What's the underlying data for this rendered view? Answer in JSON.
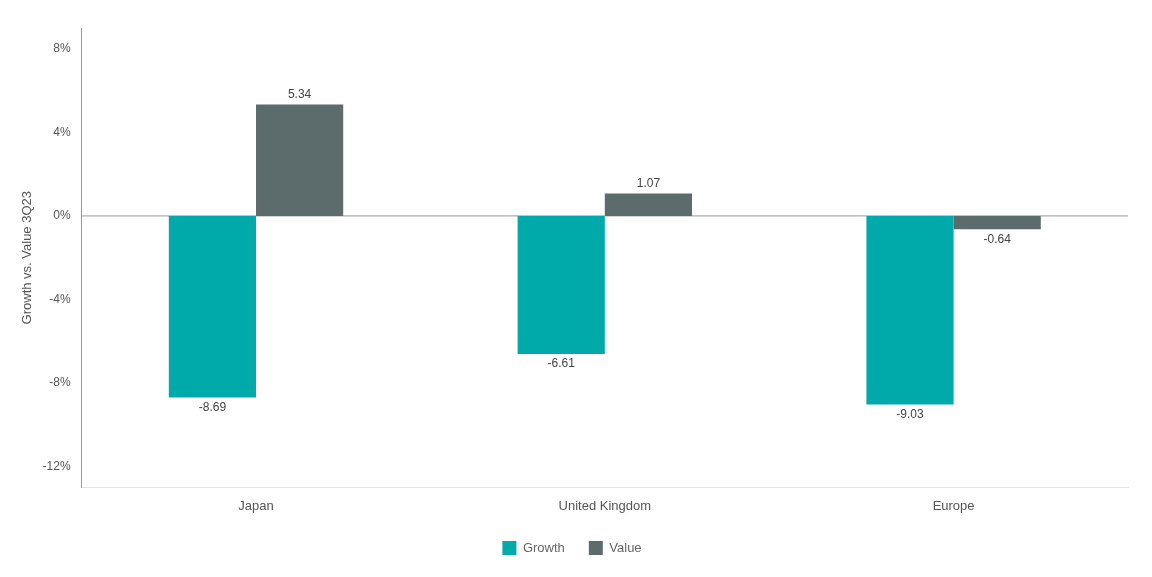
{
  "chart_data": {
    "type": "bar",
    "ylabel": "Growth vs. Value 3Q23",
    "categories": [
      "Japan",
      "United Kingdom",
      "Europe"
    ],
    "series": [
      {
        "name": "Growth",
        "color": "#00AAAA",
        "values": [
          -8.69,
          -6.61,
          -9.03
        ]
      },
      {
        "name": "Value",
        "color": "#5C6B6B",
        "values": [
          5.34,
          1.07,
          -0.64
        ]
      }
    ],
    "ylim": [
      -13,
      9
    ],
    "yticks": [
      {
        "value": -12,
        "label": "-12%"
      },
      {
        "value": -8,
        "label": "-8%"
      },
      {
        "value": -4,
        "label": "-4%"
      },
      {
        "value": 0,
        "label": "0%"
      },
      {
        "value": 4,
        "label": "4%"
      },
      {
        "value": 8,
        "label": "8%"
      }
    ],
    "grid": false,
    "legend": "bottom",
    "data_labels": true
  }
}
